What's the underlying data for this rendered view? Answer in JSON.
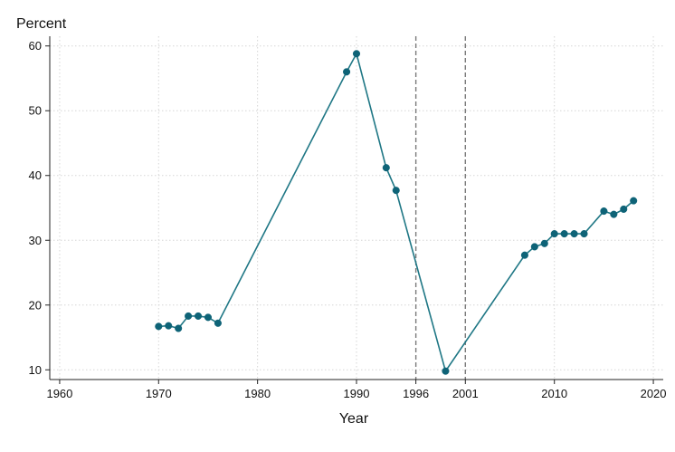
{
  "chart_data": {
    "type": "line",
    "title": "",
    "ylabel": "Percent",
    "xlabel": "Year",
    "xlim": [
      1959,
      2021
    ],
    "ylim": [
      8.5,
      61.5
    ],
    "x_ticks": [
      1960,
      1970,
      1980,
      1990,
      1996,
      2001,
      2010,
      2020
    ],
    "y_ticks": [
      10,
      20,
      30,
      40,
      50,
      60
    ],
    "grid": true,
    "vertical_reference_lines": [
      1996,
      2001
    ],
    "series": [
      {
        "color": "#1f7785",
        "marker_color": "#0e6377",
        "x": [
          1970,
          1971,
          1972,
          1973,
          1974,
          1975,
          1976,
          1989,
          1990,
          1993,
          1994,
          1999,
          2007,
          2008,
          2009,
          2010,
          2011,
          2012,
          2013,
          2015,
          2016,
          2017,
          2018
        ],
        "y": [
          16.7,
          16.8,
          16.4,
          18.3,
          18.3,
          18.1,
          17.2,
          56.0,
          58.8,
          41.2,
          37.7,
          9.8,
          27.7,
          29.0,
          29.5,
          31.0,
          31.0,
          31.0,
          31.0,
          34.5,
          34.0,
          34.8,
          36.1
        ]
      }
    ]
  }
}
